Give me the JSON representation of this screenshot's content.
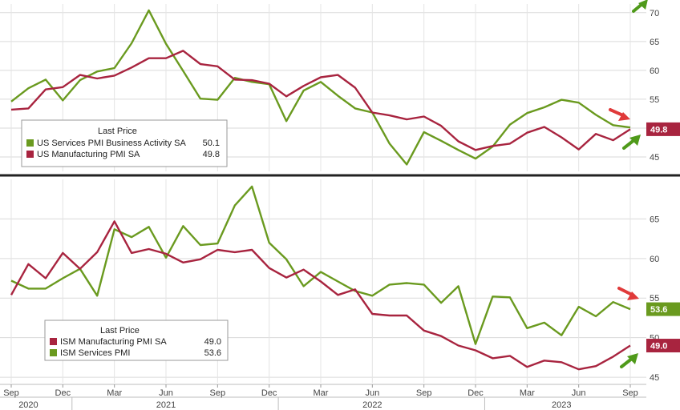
{
  "chart_data": [
    {
      "type": "line",
      "panel": "top",
      "title": "",
      "xlabel": "",
      "ylabel": "",
      "x": [
        "2020-09",
        "2020-10",
        "2020-11",
        "2020-12",
        "2021-01",
        "2021-02",
        "2021-03",
        "2021-04",
        "2021-05",
        "2021-06",
        "2021-07",
        "2021-08",
        "2021-09",
        "2021-10",
        "2021-11",
        "2021-12",
        "2022-01",
        "2022-02",
        "2022-03",
        "2022-04",
        "2022-05",
        "2022-06",
        "2022-07",
        "2022-08",
        "2022-09",
        "2022-10",
        "2022-11",
        "2022-12",
        "2023-01",
        "2023-02",
        "2023-03",
        "2023-04",
        "2023-05",
        "2023-06",
        "2023-07",
        "2023-08",
        "2023-09"
      ],
      "ylim": [
        42.5,
        71.5
      ],
      "yticks": [
        45,
        50,
        55,
        60,
        65,
        70
      ],
      "grid": true,
      "legend": {
        "title": "Last Price",
        "placement": "left",
        "entries": [
          {
            "label": "US Services PMI Business Activity SA",
            "value": "50.1",
            "color": "#6a9a1f"
          },
          {
            "label": "US Manufacturing PMI SA",
            "value": "49.8",
            "color": "#a8243f"
          }
        ]
      },
      "series": [
        {
          "name": "US Services PMI Business Activity SA",
          "color": "#6a9a1f",
          "values": [
            54.6,
            56.9,
            58.4,
            54.8,
            58.3,
            59.8,
            60.4,
            64.7,
            70.4,
            64.6,
            59.9,
            55.1,
            54.9,
            58.7,
            58.0,
            57.6,
            51.2,
            56.5,
            58.0,
            55.6,
            53.4,
            52.7,
            47.3,
            43.7,
            49.3,
            47.8,
            46.2,
            44.7,
            46.8,
            50.6,
            52.6,
            53.6,
            54.9,
            54.4,
            52.3,
            50.5,
            50.1
          ]
        },
        {
          "name": "US Manufacturing PMI SA",
          "color": "#a8243f",
          "values": [
            53.2,
            53.4,
            56.7,
            57.1,
            59.2,
            58.6,
            59.1,
            60.5,
            62.1,
            62.1,
            63.4,
            61.1,
            60.7,
            58.4,
            58.3,
            57.7,
            55.5,
            57.3,
            58.8,
            59.2,
            57.0,
            52.7,
            52.2,
            51.5,
            52.0,
            50.4,
            47.7,
            46.2,
            46.9,
            47.3,
            49.2,
            50.2,
            48.4,
            46.3,
            49.0,
            47.9,
            49.8
          ]
        }
      ],
      "badges": [
        {
          "text": "49.8",
          "bg": "#a8243f",
          "fg": "#ffffff",
          "y": 49.8
        }
      ]
    },
    {
      "type": "line",
      "panel": "bottom",
      "title": "",
      "xlabel": "",
      "ylabel": "",
      "x": [
        "2020-09",
        "2020-10",
        "2020-11",
        "2020-12",
        "2021-01",
        "2021-02",
        "2021-03",
        "2021-04",
        "2021-05",
        "2021-06",
        "2021-07",
        "2021-08",
        "2021-09",
        "2021-10",
        "2021-11",
        "2021-12",
        "2022-01",
        "2022-02",
        "2022-03",
        "2022-04",
        "2022-05",
        "2022-06",
        "2022-07",
        "2022-08",
        "2022-09",
        "2022-10",
        "2022-11",
        "2022-12",
        "2023-01",
        "2023-02",
        "2023-03",
        "2023-04",
        "2023-05",
        "2023-06",
        "2023-07",
        "2023-08",
        "2023-09"
      ],
      "ylim": [
        44.3,
        70
      ],
      "yticks": [
        45,
        50,
        55,
        60,
        65
      ],
      "grid": true,
      "legend": {
        "title": "Last Price",
        "placement": "bottom-left",
        "entries": [
          {
            "label": "ISM Manufacturing PMI SA",
            "value": "49.0",
            "color": "#a8243f"
          },
          {
            "label": "ISM Services PMI",
            "value": "53.6",
            "color": "#6a9a1f"
          }
        ]
      },
      "series": [
        {
          "name": "ISM Services PMI",
          "color": "#6a9a1f",
          "values": [
            57.2,
            56.2,
            56.2,
            57.5,
            58.7,
            55.3,
            63.7,
            62.7,
            64.0,
            60.1,
            64.1,
            61.7,
            61.9,
            66.7,
            69.1,
            62.0,
            59.9,
            56.5,
            58.3,
            57.1,
            55.9,
            55.3,
            56.7,
            56.9,
            56.7,
            54.4,
            56.5,
            49.2,
            55.2,
            55.1,
            51.2,
            51.9,
            50.3,
            53.9,
            52.7,
            54.5,
            53.6
          ]
        },
        {
          "name": "ISM Manufacturing PMI SA",
          "color": "#a8243f",
          "values": [
            55.4,
            59.3,
            57.5,
            60.7,
            58.7,
            60.8,
            64.7,
            60.7,
            61.2,
            60.6,
            59.5,
            59.9,
            61.1,
            60.8,
            61.1,
            58.8,
            57.6,
            58.6,
            57.1,
            55.4,
            56.1,
            53.0,
            52.8,
            52.8,
            50.9,
            50.2,
            49.0,
            48.4,
            47.4,
            47.7,
            46.3,
            47.1,
            46.9,
            46.0,
            46.4,
            47.6,
            49.0
          ]
        }
      ],
      "badges": [
        {
          "text": "53.6",
          "bg": "#6a9a1f",
          "fg": "#ffffff",
          "y": 53.6
        },
        {
          "text": "49.0",
          "bg": "#a8243f",
          "fg": "#ffffff",
          "y": 49.0
        }
      ]
    }
  ],
  "x_axis": {
    "month_labels": [
      {
        "label": "Sep",
        "date": "2020-09"
      },
      {
        "label": "Dec",
        "date": "2020-12"
      },
      {
        "label": "Mar",
        "date": "2021-03"
      },
      {
        "label": "Jun",
        "date": "2021-06"
      },
      {
        "label": "Sep",
        "date": "2021-09"
      },
      {
        "label": "Dec",
        "date": "2021-12"
      },
      {
        "label": "Mar",
        "date": "2022-03"
      },
      {
        "label": "Jun",
        "date": "2022-06"
      },
      {
        "label": "Sep",
        "date": "2022-09"
      },
      {
        "label": "Dec",
        "date": "2022-12"
      },
      {
        "label": "Mar",
        "date": "2023-03"
      },
      {
        "label": "Jun",
        "date": "2023-06"
      },
      {
        "label": "Sep",
        "date": "2023-09"
      }
    ],
    "year_labels": [
      {
        "label": "2020",
        "date": "2020-10"
      },
      {
        "label": "2021",
        "date": "2021-06"
      },
      {
        "label": "2022",
        "date": "2022-06"
      },
      {
        "label": "2023",
        "date": "2023-05"
      }
    ]
  },
  "colors": {
    "services": "#6a9a1f",
    "manufacturing": "#a8243f",
    "arrow_down": "#e03a3a",
    "arrow_up": "#4f9a1a",
    "grid": "#d9d9d9",
    "divider": "#222222"
  }
}
